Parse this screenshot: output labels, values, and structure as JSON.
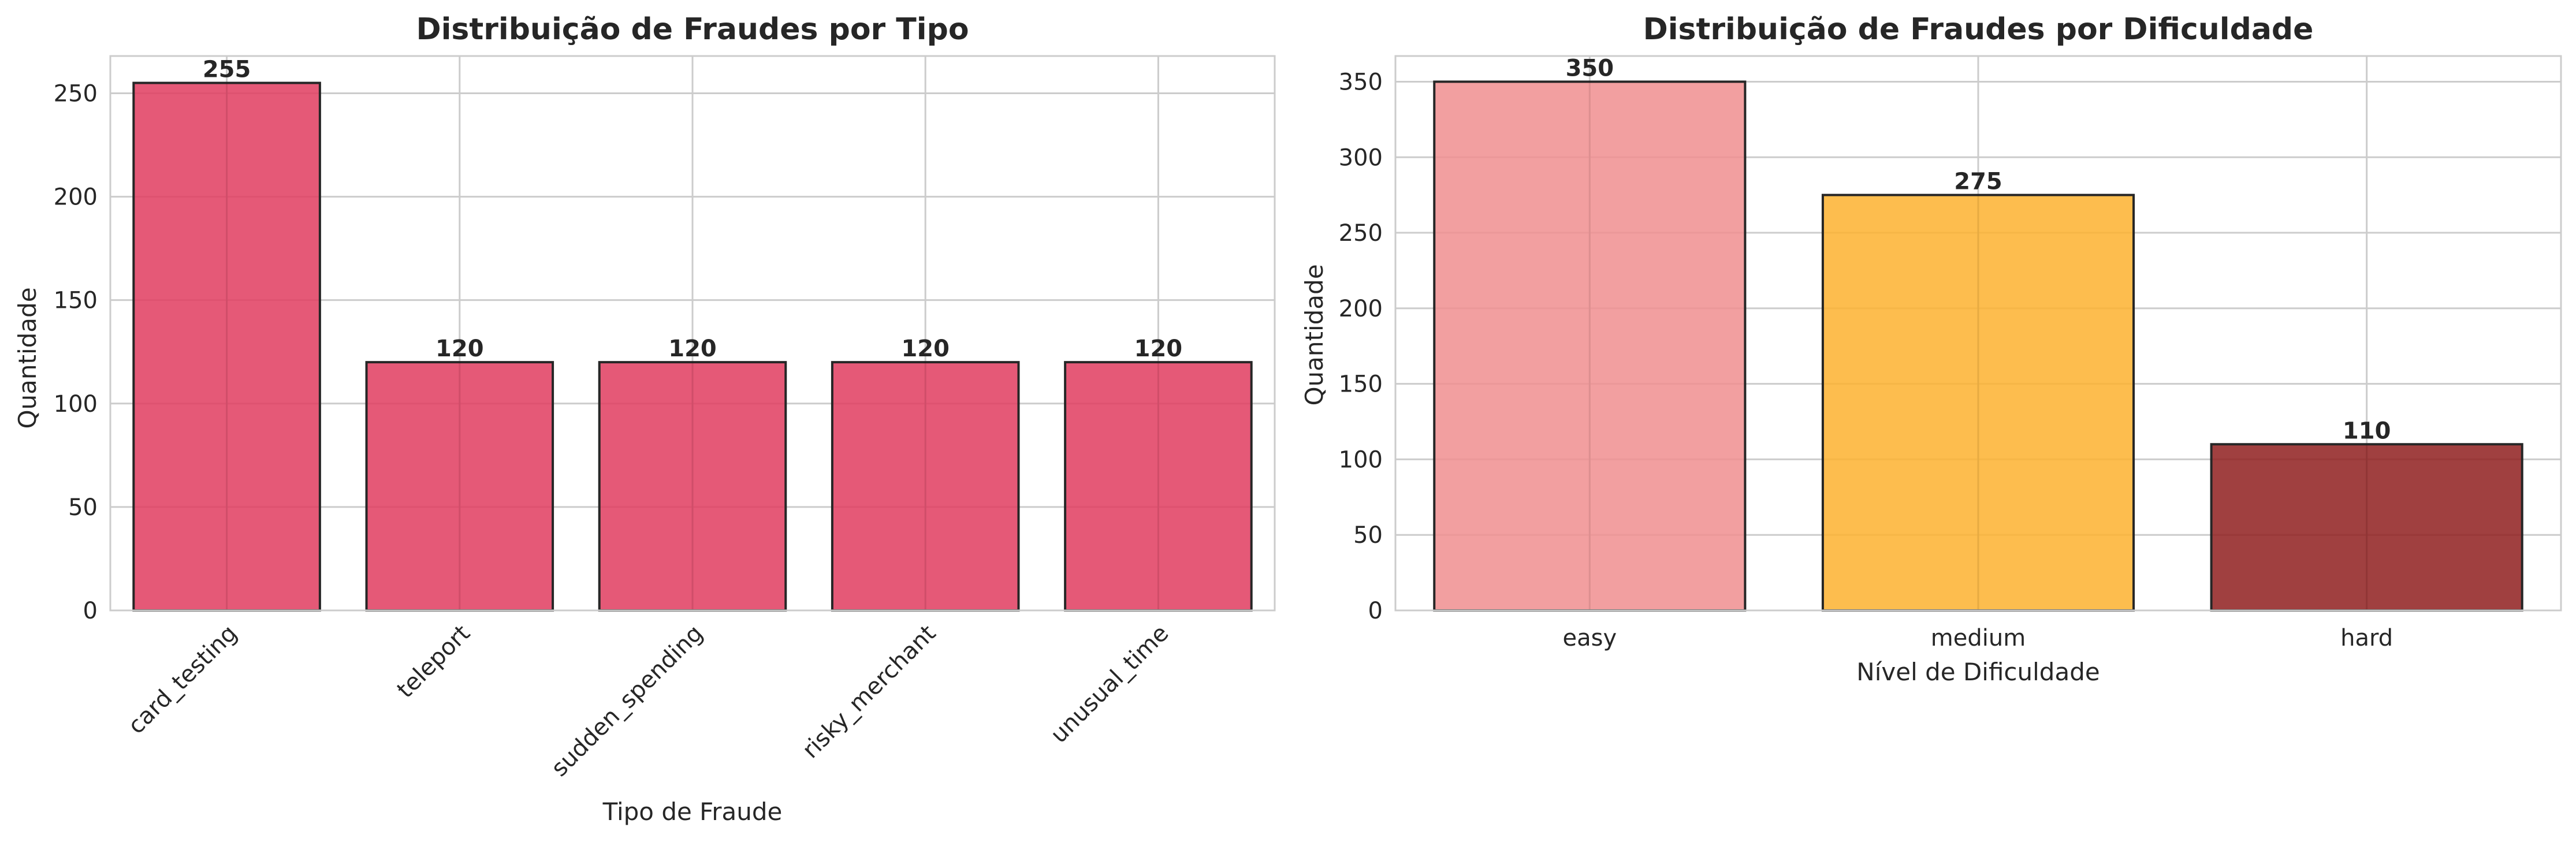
{
  "chart_data": [
    {
      "type": "bar",
      "title": "Distribuição de Fraudes por Tipo",
      "xlabel": "Tipo de Fraude",
      "ylabel": "Quantidade",
      "categories": [
        "card_testing",
        "teleport",
        "sudden_spending",
        "risky_merchant",
        "unusual_time"
      ],
      "values": [
        255,
        120,
        120,
        120,
        120
      ],
      "ylim": [
        0,
        268
      ],
      "yticks": [
        0,
        50,
        100,
        150,
        200,
        250
      ],
      "colors": [
        "#e03c5f",
        "#e03c5f",
        "#e03c5f",
        "#e03c5f",
        "#e03c5f"
      ],
      "xtick_rotation": 45,
      "grid": true
    },
    {
      "type": "bar",
      "title": "Distribuição de Fraudes por Dificuldade",
      "xlabel": "Nível de Dificuldade",
      "ylabel": "Quantidade",
      "categories": [
        "easy",
        "medium",
        "hard"
      ],
      "values": [
        350,
        275,
        110
      ],
      "ylim": [
        0,
        367
      ],
      "yticks": [
        0,
        50,
        100,
        150,
        200,
        250,
        300,
        350
      ],
      "colors": [
        "#f08e8f",
        "#fdb12f",
        "#8f1e1e"
      ],
      "xtick_rotation": 0,
      "grid": true
    }
  ]
}
